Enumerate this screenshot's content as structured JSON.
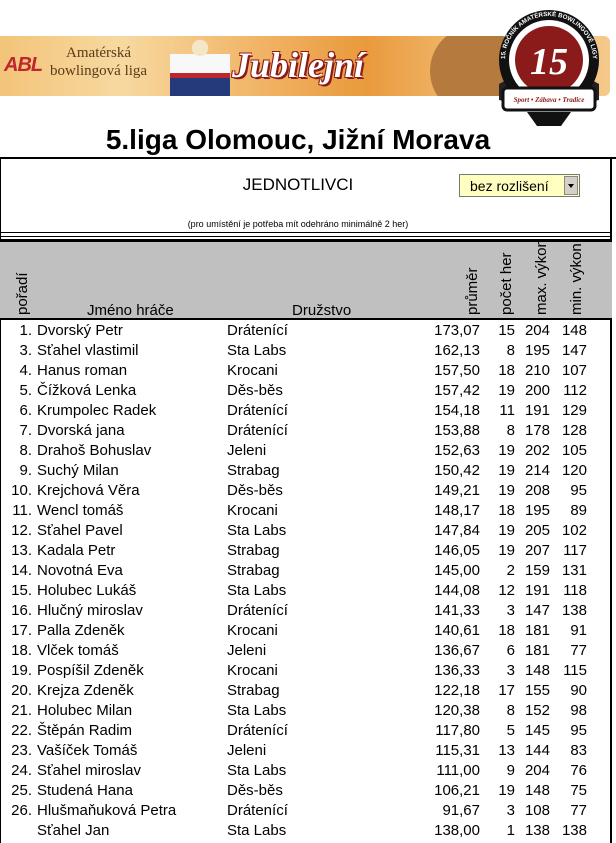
{
  "banner": {
    "logo_text": "ABL",
    "subtitle_line1": "Amatérská",
    "subtitle_line2": "bowlingová liga",
    "headline": "Jubilejní",
    "badge_number": "15",
    "badge_text": "15. ROČNÍK AMATÉRSKÉ BOWLINGOVÉ LIGY",
    "badge_motto": "Sport • Zábava • Tradice"
  },
  "page_title": "5.liga Olomouc, Jižní Morava",
  "section_title": "JEDNOTLIVCI",
  "filter": {
    "selected": "bez rozlišení"
  },
  "note": "(pro umístění je potřeba mít odehráno minimálně 2 her)",
  "columns": {
    "rank": "pořadí",
    "name": "Jméno hráče",
    "team": "Družstvo",
    "avg": "průměr",
    "games": "počet her",
    "max": "max. výkon",
    "min": "min. výkon"
  },
  "rows": [
    {
      "rank": "1.",
      "name": "Dvorský Petr",
      "team": "Drátenící",
      "avg": "173,07",
      "games": "15",
      "max": "204",
      "min": "148"
    },
    {
      "rank": "3.",
      "name": "Sťahel vlastimil",
      "team": "Sta Labs",
      "avg": "162,13",
      "games": "8",
      "max": "195",
      "min": "147"
    },
    {
      "rank": "4.",
      "name": "Hanus roman",
      "team": "Krocani",
      "avg": "157,50",
      "games": "18",
      "max": "210",
      "min": "107"
    },
    {
      "rank": "5.",
      "name": "Čížková Lenka",
      "team": "Děs-běs",
      "avg": "157,42",
      "games": "19",
      "max": "200",
      "min": "112"
    },
    {
      "rank": "6.",
      "name": "Krumpolec Radek",
      "team": "Drátenící",
      "avg": "154,18",
      "games": "11",
      "max": "191",
      "min": "129"
    },
    {
      "rank": "7.",
      "name": "Dvorská jana",
      "team": "Drátenící",
      "avg": "153,88",
      "games": "8",
      "max": "178",
      "min": "128"
    },
    {
      "rank": "8.",
      "name": "Drahoš Bohuslav",
      "team": "Jeleni",
      "avg": "152,63",
      "games": "19",
      "max": "202",
      "min": "105"
    },
    {
      "rank": "9.",
      "name": "Suchý Milan",
      "team": "Strabag",
      "avg": "150,42",
      "games": "19",
      "max": "214",
      "min": "120"
    },
    {
      "rank": "10.",
      "name": "Krejchová Věra",
      "team": "Děs-běs",
      "avg": "149,21",
      "games": "19",
      "max": "208",
      "min": "95"
    },
    {
      "rank": "11.",
      "name": "Wencl tomáš",
      "team": "Krocani",
      "avg": "148,17",
      "games": "18",
      "max": "195",
      "min": "89"
    },
    {
      "rank": "12.",
      "name": "Sťahel Pavel",
      "team": "Sta Labs",
      "avg": "147,84",
      "games": "19",
      "max": "205",
      "min": "102"
    },
    {
      "rank": "13.",
      "name": "Kadala Petr",
      "team": "Strabag",
      "avg": "146,05",
      "games": "19",
      "max": "207",
      "min": "117"
    },
    {
      "rank": "14.",
      "name": "Novotná Eva",
      "team": "Strabag",
      "avg": "145,00",
      "games": "2",
      "max": "159",
      "min": "131"
    },
    {
      "rank": "15.",
      "name": "Holubec Lukáš",
      "team": "Sta Labs",
      "avg": "144,08",
      "games": "12",
      "max": "191",
      "min": "118"
    },
    {
      "rank": "16.",
      "name": "Hlučný miroslav",
      "team": "Drátenící",
      "avg": "141,33",
      "games": "3",
      "max": "147",
      "min": "138"
    },
    {
      "rank": "17.",
      "name": "Palla Zdeněk",
      "team": "Krocani",
      "avg": "140,61",
      "games": "18",
      "max": "181",
      "min": "91"
    },
    {
      "rank": "18.",
      "name": "Vlček tomáš",
      "team": "Jeleni",
      "avg": "136,67",
      "games": "6",
      "max": "181",
      "min": "77"
    },
    {
      "rank": "19.",
      "name": "Pospíšil Zdeněk",
      "team": "Krocani",
      "avg": "136,33",
      "games": "3",
      "max": "148",
      "min": "115"
    },
    {
      "rank": "20.",
      "name": "Krejza Zdeněk",
      "team": "Strabag",
      "avg": "122,18",
      "games": "17",
      "max": "155",
      "min": "90"
    },
    {
      "rank": "21.",
      "name": "Holubec Milan",
      "team": "Sta Labs",
      "avg": "120,38",
      "games": "8",
      "max": "152",
      "min": "98"
    },
    {
      "rank": "22.",
      "name": "Štěpán Radim",
      "team": "Drátenící",
      "avg": "117,80",
      "games": "5",
      "max": "145",
      "min": "95"
    },
    {
      "rank": "23.",
      "name": "Vašíček Tomáš",
      "team": "Jeleni",
      "avg": "115,31",
      "games": "13",
      "max": "144",
      "min": "83"
    },
    {
      "rank": "24.",
      "name": "Sťahel miroslav",
      "team": "Sta Labs",
      "avg": "111,00",
      "games": "9",
      "max": "204",
      "min": "76"
    },
    {
      "rank": "25.",
      "name": "Studená Hana",
      "team": "Děs-běs",
      "avg": "106,21",
      "games": "19",
      "max": "148",
      "min": "75"
    },
    {
      "rank": "26.",
      "name": "Hlušmaňuková Petra",
      "team": "Drátenící",
      "avg": "91,67",
      "games": "3",
      "max": "108",
      "min": "77"
    },
    {
      "rank": "",
      "name": "Sťahel Jan",
      "team": "Sta Labs",
      "avg": "138,00",
      "games": "1",
      "max": "138",
      "min": "138"
    }
  ]
}
